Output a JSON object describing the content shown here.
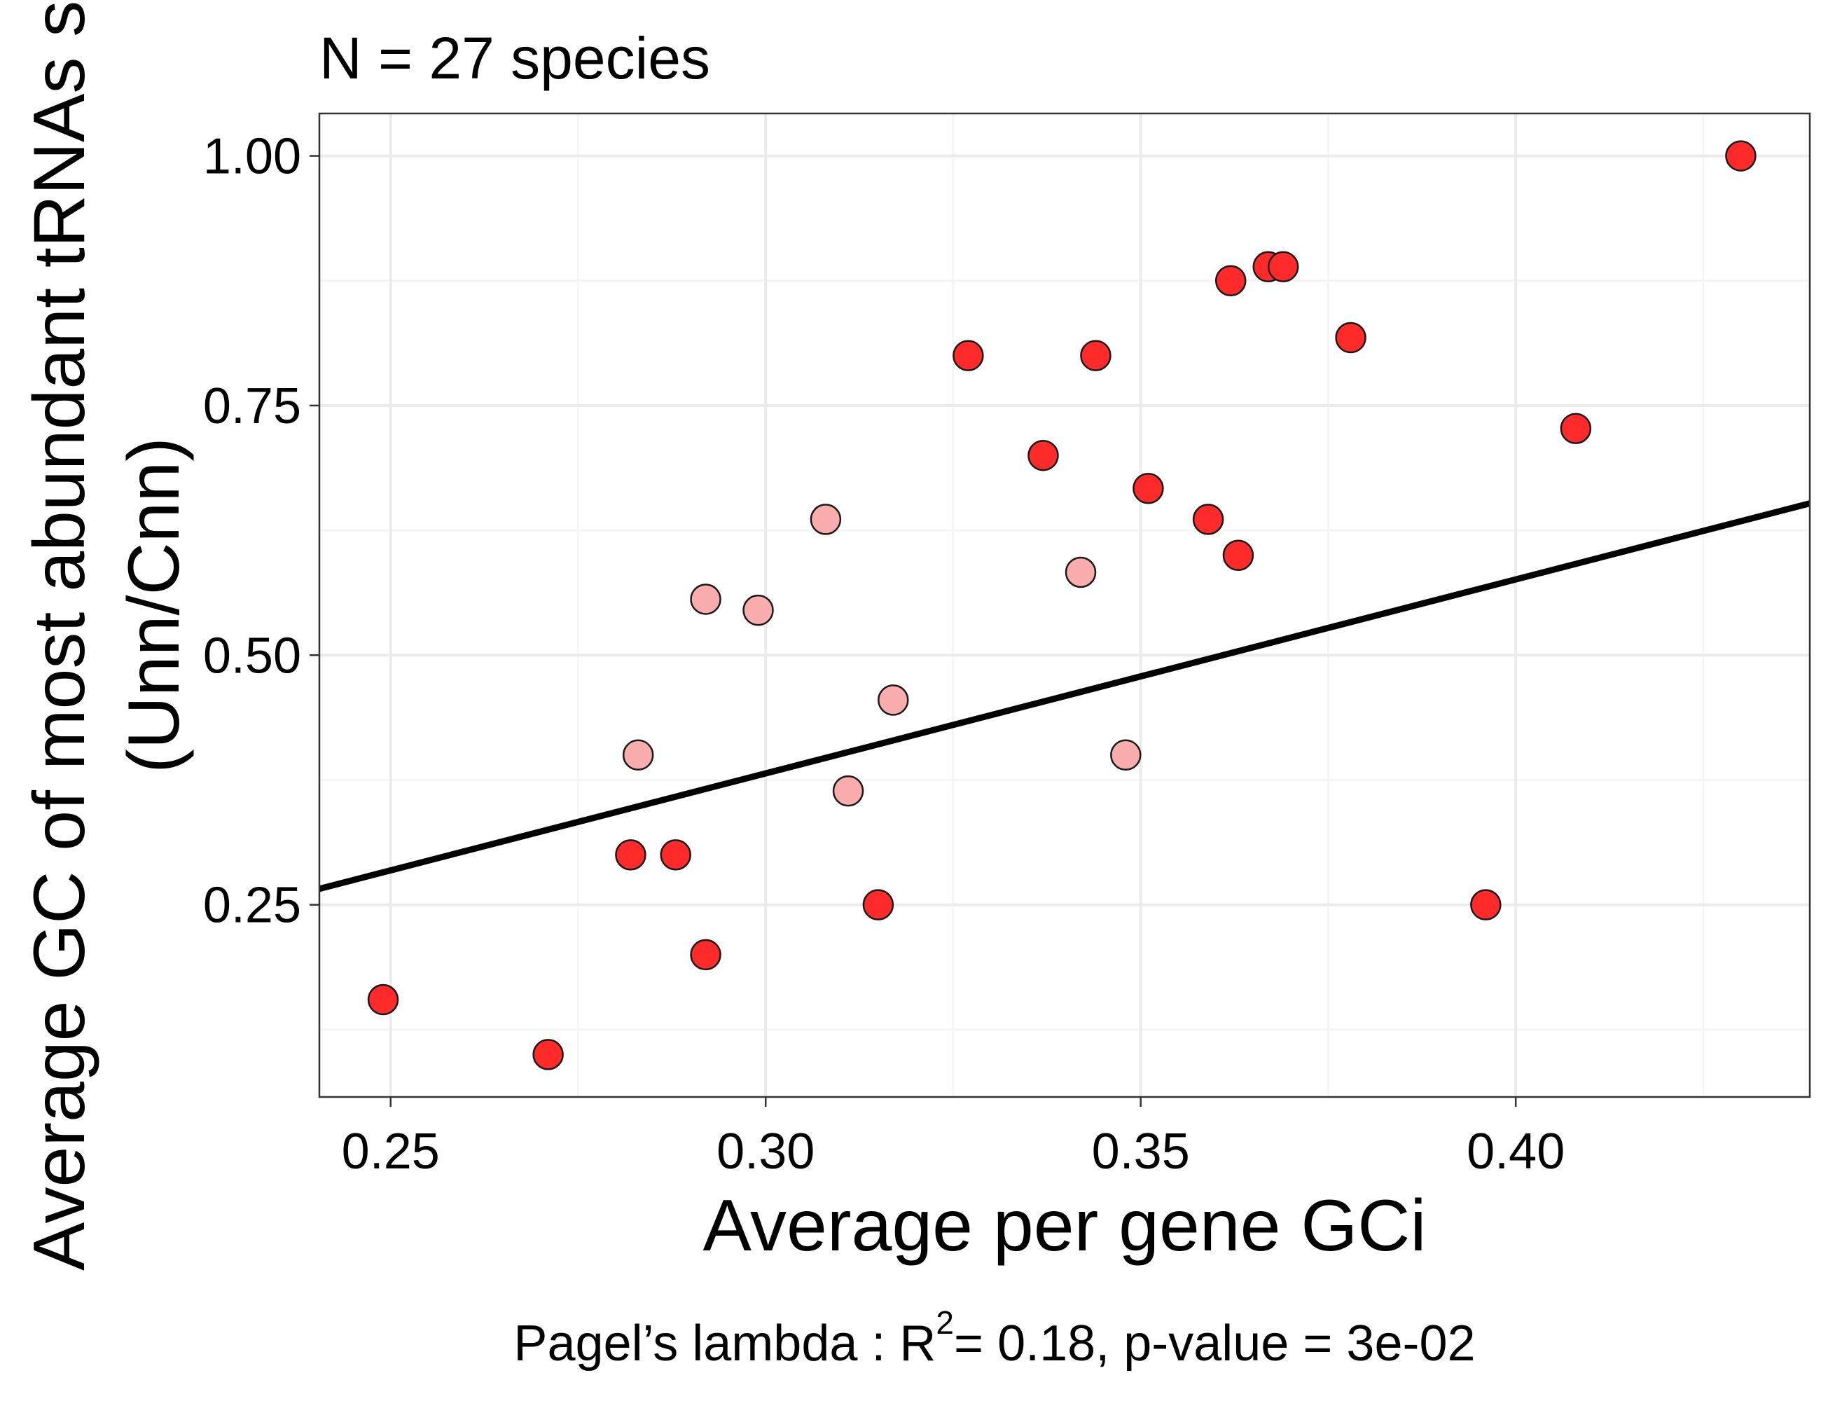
{
  "chart_data": {
    "type": "scatter",
    "title": "N = 27 species",
    "xlabel": "Average per gene GCi",
    "ylabel_lines": [
      "Average GC of most abundant tRNAs set",
      "(Unn/Cnn)"
    ],
    "caption": {
      "prefix": "Pagel’s lambda : R",
      "superscript": "2",
      "suffix": "= 0.18, p-value = 3e-02"
    },
    "xlim": [
      0.2405,
      0.4392
    ],
    "ylim": [
      0.0575,
      1.0425
    ],
    "x_ticks": [
      {
        "value": 0.25,
        "label": "0.25"
      },
      {
        "value": 0.3,
        "label": "0.30"
      },
      {
        "value": 0.35,
        "label": "0.35"
      },
      {
        "value": 0.4,
        "label": "0.40"
      }
    ],
    "y_ticks": [
      {
        "value": 0.25,
        "label": "0.25"
      },
      {
        "value": 0.5,
        "label": "0.50"
      },
      {
        "value": 0.75,
        "label": "0.75"
      },
      {
        "value": 1.0,
        "label": "1.00"
      }
    ],
    "x_minor": [
      0.275,
      0.325,
      0.375,
      0.425
    ],
    "y_minor": [
      0.125,
      0.375,
      0.625,
      0.875
    ],
    "grid": true,
    "colors": {
      "point_dark": "#ff2a2a",
      "point_light": "#f9adad",
      "point_edge": "#1a1a1a",
      "grid_major": "#ebebeb",
      "grid_minor": "#f4f4f4",
      "panel_border": "#333333",
      "fit_line": "#000000"
    },
    "series": [
      {
        "style": "dark",
        "points": [
          {
            "x": 0.249,
            "y": 0.155
          },
          {
            "x": 0.271,
            "y": 0.1
          },
          {
            "x": 0.282,
            "y": 0.3
          },
          {
            "x": 0.288,
            "y": 0.3
          },
          {
            "x": 0.292,
            "y": 0.2
          },
          {
            "x": 0.315,
            "y": 0.25
          },
          {
            "x": 0.327,
            "y": 0.8
          },
          {
            "x": 0.337,
            "y": 0.7
          },
          {
            "x": 0.344,
            "y": 0.8
          },
          {
            "x": 0.351,
            "y": 0.667
          },
          {
            "x": 0.359,
            "y": 0.636
          },
          {
            "x": 0.362,
            "y": 0.875
          },
          {
            "x": 0.363,
            "y": 0.6
          },
          {
            "x": 0.367,
            "y": 0.889
          },
          {
            "x": 0.369,
            "y": 0.889
          },
          {
            "x": 0.378,
            "y": 0.818
          },
          {
            "x": 0.396,
            "y": 0.25
          },
          {
            "x": 0.408,
            "y": 0.727
          },
          {
            "x": 0.43,
            "y": 1.0
          }
        ]
      },
      {
        "style": "light",
        "points": [
          {
            "x": 0.283,
            "y": 0.4
          },
          {
            "x": 0.292,
            "y": 0.556
          },
          {
            "x": 0.299,
            "y": 0.545
          },
          {
            "x": 0.308,
            "y": 0.636
          },
          {
            "x": 0.311,
            "y": 0.364
          },
          {
            "x": 0.317,
            "y": 0.455
          },
          {
            "x": 0.342,
            "y": 0.583
          },
          {
            "x": 0.348,
            "y": 0.4
          }
        ]
      }
    ],
    "fit_line": {
      "x": [
        0.2405,
        0.4392
      ],
      "y": [
        0.266,
        0.652
      ]
    }
  }
}
